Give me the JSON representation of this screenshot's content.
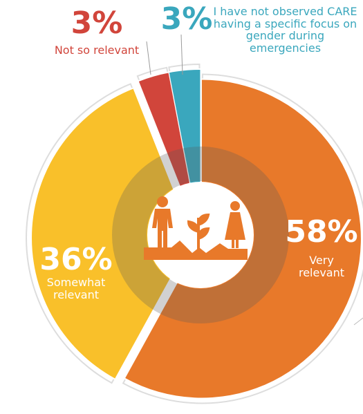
{
  "chart_data": {
    "type": "pie",
    "categories": [
      "Very relevant",
      "Somewhat relevant",
      "Not so relevant",
      "I have not observed CARE having a specific focus on gender during emergencies"
    ],
    "values": [
      58,
      36,
      3,
      3
    ],
    "value_labels": [
      "58%",
      "36%",
      "3%",
      "3%"
    ],
    "colors": [
      "#e8792a",
      "#f9c02a",
      "#d1453b",
      "#3aa7bd"
    ]
  }
}
